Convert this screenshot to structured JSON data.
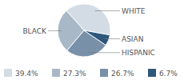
{
  "chart_data": {
    "type": "pie",
    "categories": [
      "WHITE",
      "BLACK",
      "HISPANIC",
      "ASIAN"
    ],
    "values": [
      39.4,
      27.3,
      26.7,
      6.7
    ],
    "value_labels": [
      "39.4%",
      "27.3%",
      "26.7%",
      "6.7%"
    ],
    "colors": [
      "#d3dce5",
      "#a9b8c7",
      "#7891a9",
      "#2f577b"
    ]
  }
}
